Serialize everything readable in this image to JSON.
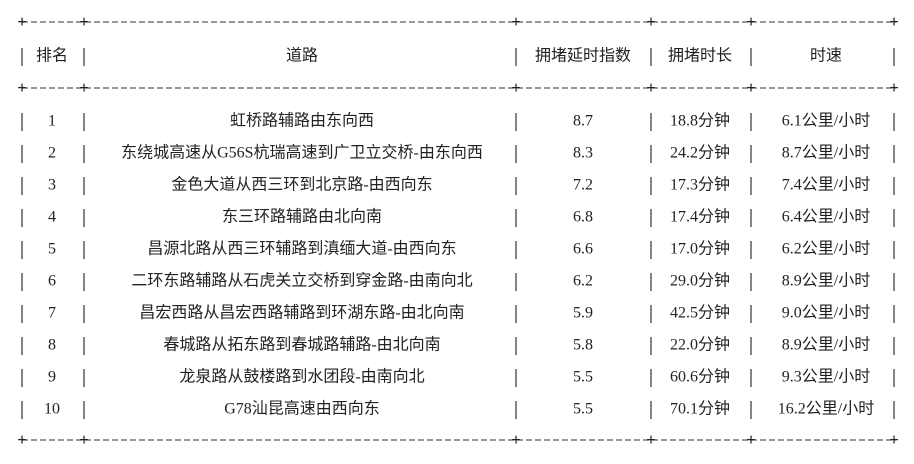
{
  "table": {
    "header": [
      "排名",
      "道路",
      "拥堵延时指数",
      "拥堵时长",
      "时速"
    ],
    "rows": [
      [
        "1",
        "虹桥路辅路由东向西",
        "8.7",
        "18.8分钟",
        "6.1公里/小时"
      ],
      [
        "2",
        "东绕城高速从G56S杭瑞高速到广卫立交桥-由东向西",
        "8.3",
        "24.2分钟",
        "8.7公里/小时"
      ],
      [
        "3",
        "金色大道从西三环到北京路-由西向东",
        "7.2",
        "17.3分钟",
        "7.4公里/小时"
      ],
      [
        "4",
        "东三环路辅路由北向南",
        "6.8",
        "17.4分钟",
        "6.4公里/小时"
      ],
      [
        "5",
        "昌源北路从西三环辅路到滇缅大道-由西向东",
        "6.6",
        "17.0分钟",
        "6.2公里/小时"
      ],
      [
        "6",
        "二环东路辅路从石虎关立交桥到穿金路-由南向北",
        "6.2",
        "29.0分钟",
        "8.9公里/小时"
      ],
      [
        "7",
        "昌宏西路从昌宏西路辅路到环湖东路-由北向南",
        "5.9",
        "42.5分钟",
        "9.0公里/小时"
      ],
      [
        "8",
        "春城路从拓东路到春城路辅路-由北向南",
        "5.8",
        "22.0分钟",
        "8.9公里/小时"
      ],
      [
        "9",
        "龙泉路从鼓楼路到水团段-由南向北",
        "5.5",
        "60.6分钟",
        "9.3公里/小时"
      ],
      [
        "10",
        "G78汕昆高速由西向东",
        "5.5",
        "70.1分钟",
        "16.2公里/小时"
      ]
    ]
  }
}
